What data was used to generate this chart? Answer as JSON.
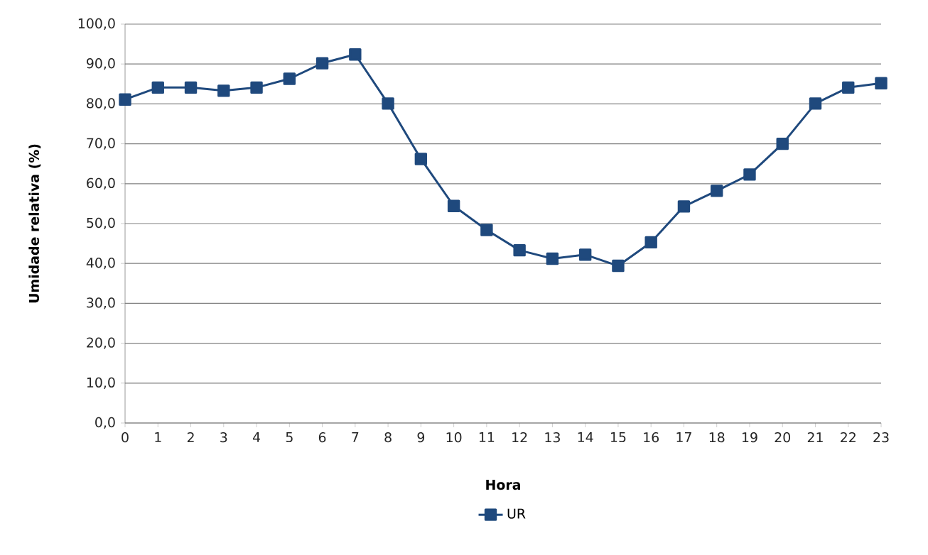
{
  "chart_data": {
    "type": "line",
    "xlabel": "Hora",
    "ylabel": "Umidade relativa (%)",
    "x": [
      0,
      1,
      2,
      3,
      4,
      5,
      6,
      7,
      8,
      9,
      10,
      11,
      12,
      13,
      14,
      15,
      16,
      17,
      18,
      19,
      20,
      21,
      22,
      23
    ],
    "series": [
      {
        "name": "UR",
        "color": "#1f497d",
        "values": [
          81.1,
          84.1,
          84.1,
          83.3,
          84.1,
          86.3,
          90.2,
          92.4,
          80.1,
          66.2,
          54.4,
          48.4,
          43.3,
          41.2,
          42.2,
          39.4,
          45.3,
          54.3,
          58.2,
          62.3,
          70.0,
          80.1,
          84.1,
          85.2
        ]
      }
    ],
    "xlim": [
      0,
      23
    ],
    "xticks": [
      0,
      1,
      2,
      3,
      4,
      5,
      6,
      7,
      8,
      9,
      10,
      11,
      12,
      13,
      14,
      15,
      16,
      17,
      18,
      19,
      20,
      21,
      22,
      23
    ],
    "ylim": [
      0,
      100
    ],
    "yticks": [
      {
        "value": 0,
        "label": "0,0"
      },
      {
        "value": 10,
        "label": "10,0"
      },
      {
        "value": 20,
        "label": "20,0"
      },
      {
        "value": 30,
        "label": "30,0"
      },
      {
        "value": 40,
        "label": "40,0"
      },
      {
        "value": 50,
        "label": "50,0"
      },
      {
        "value": 60,
        "label": "60,0"
      },
      {
        "value": 70,
        "label": "70,0"
      },
      {
        "value": 80,
        "label": "80,0"
      },
      {
        "value": 90,
        "label": "90,0"
      },
      {
        "value": 100,
        "label": "100,0"
      }
    ],
    "grid": "y",
    "legend": "bottom",
    "marker": "square",
    "line_style": "solid"
  }
}
